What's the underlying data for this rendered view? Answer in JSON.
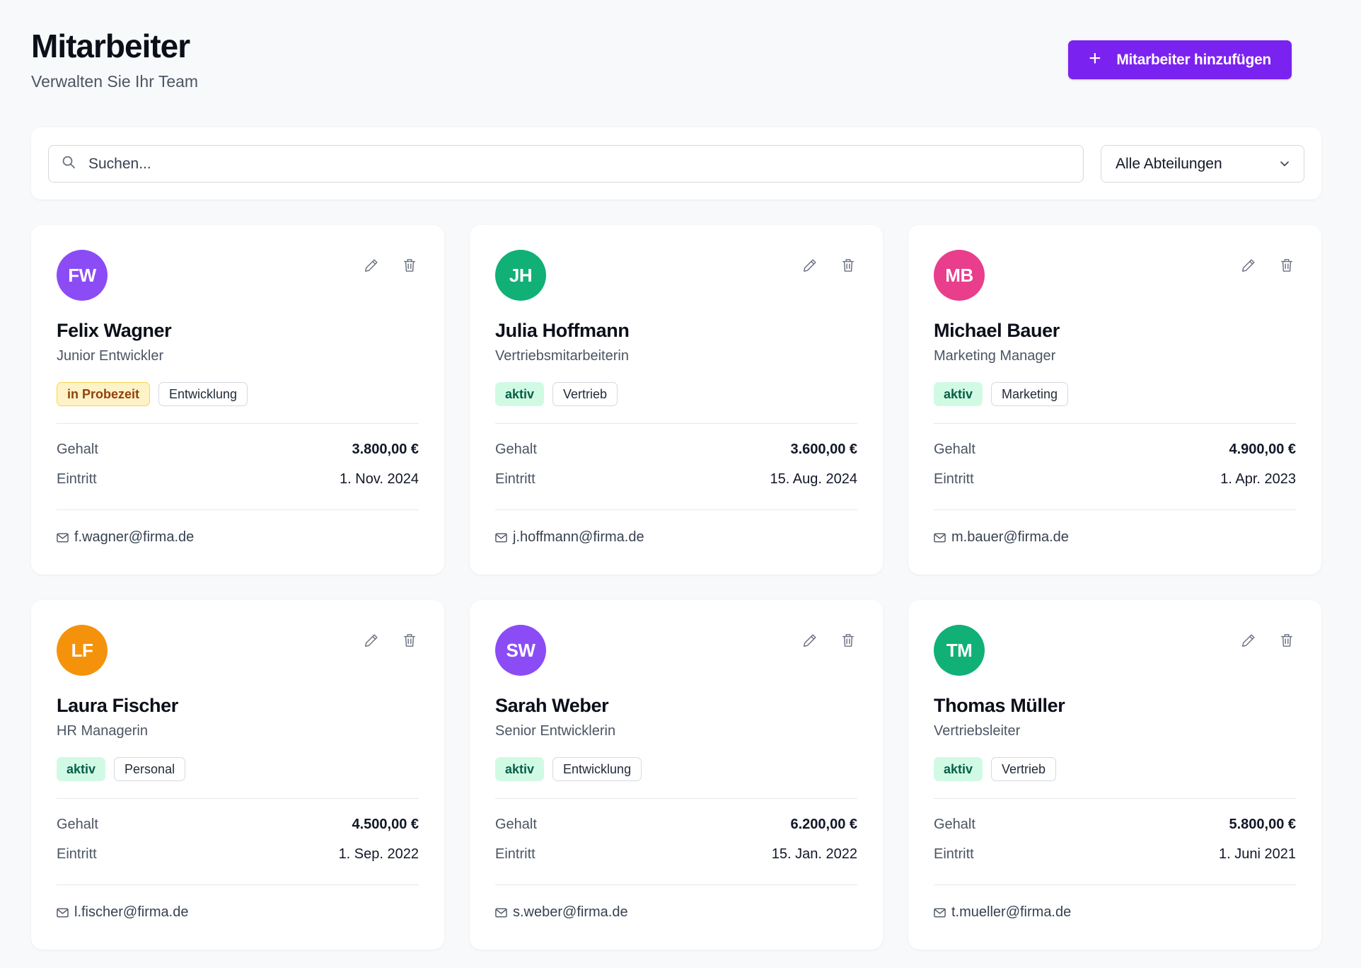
{
  "header": {
    "title": "Mitarbeiter",
    "subtitle": "Verwalten Sie Ihr Team",
    "add_button_label": "Mitarbeiter hinzufügen"
  },
  "filters": {
    "search_placeholder": "Suchen...",
    "department_selected": "Alle Abteilungen"
  },
  "labels": {
    "salary": "Gehalt",
    "start": "Eintritt"
  },
  "colors": {
    "accent": "#7a22f0",
    "status_active_bg": "#d1fae5",
    "status_probation_bg": "#fef3c7"
  },
  "employees": [
    {
      "initials": "FW",
      "avatar_color": "#8b4cf6",
      "name": "Felix Wagner",
      "role": "Junior Entwickler",
      "status": "in Probezeit",
      "status_type": "probe",
      "department": "Entwicklung",
      "salary": "3.800,00 €",
      "start": "1. Nov. 2024",
      "email": "f.wagner@firma.de"
    },
    {
      "initials": "JH",
      "avatar_color": "#10b077",
      "name": "Julia Hoffmann",
      "role": "Vertriebsmitarbeiterin",
      "status": "aktiv",
      "status_type": "aktiv",
      "department": "Vertrieb",
      "salary": "3.600,00 €",
      "start": "15. Aug. 2024",
      "email": "j.hoffmann@firma.de"
    },
    {
      "initials": "MB",
      "avatar_color": "#e83e8c",
      "name": "Michael Bauer",
      "role": "Marketing Manager",
      "status": "aktiv",
      "status_type": "aktiv",
      "department": "Marketing",
      "salary": "4.900,00 €",
      "start": "1. Apr. 2023",
      "email": "m.bauer@firma.de"
    },
    {
      "initials": "LF",
      "avatar_color": "#f4930b",
      "name": "Laura Fischer",
      "role": "HR Managerin",
      "status": "aktiv",
      "status_type": "aktiv",
      "department": "Personal",
      "salary": "4.500,00 €",
      "start": "1. Sep. 2022",
      "email": "l.fischer@firma.de"
    },
    {
      "initials": "SW",
      "avatar_color": "#8b4cf6",
      "name": "Sarah Weber",
      "role": "Senior Entwicklerin",
      "status": "aktiv",
      "status_type": "aktiv",
      "department": "Entwicklung",
      "salary": "6.200,00 €",
      "start": "15. Jan. 2022",
      "email": "s.weber@firma.de"
    },
    {
      "initials": "TM",
      "avatar_color": "#10b077",
      "name": "Thomas Müller",
      "role": "Vertriebsleiter",
      "status": "aktiv",
      "status_type": "aktiv",
      "department": "Vertrieb",
      "salary": "5.800,00 €",
      "start": "1. Juni 2021",
      "email": "t.mueller@firma.de"
    }
  ]
}
